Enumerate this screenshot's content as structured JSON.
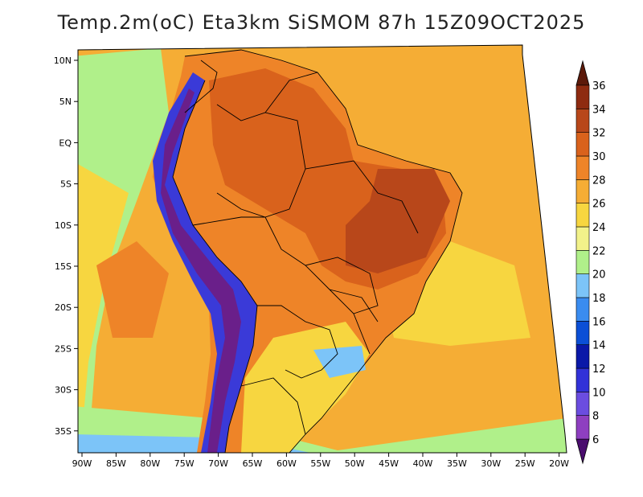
{
  "title": "Temp.2m(oC) Eta3km SiSMOM 87h 15Z09OCT2025",
  "lat_labels": [
    "10N",
    "5N",
    "EQ",
    "5S",
    "10S",
    "15S",
    "20S",
    "25S",
    "30S",
    "35S"
  ],
  "lon_labels": [
    "90W",
    "85W",
    "80W",
    "75W",
    "70W",
    "65W",
    "60W",
    "55W",
    "50W",
    "45W",
    "40W",
    "35W",
    "30W",
    "25W",
    "20W"
  ],
  "colorbar": {
    "unit": "oC",
    "levels": [
      "6",
      "8",
      "10",
      "12",
      "14",
      "16",
      "18",
      "20",
      "22",
      "24",
      "26",
      "28",
      "30",
      "32",
      "34",
      "36"
    ],
    "colors": [
      "#6a1f8a",
      "#8e3fc0",
      "#6b4de0",
      "#3232d8",
      "#0a18a8",
      "#0b4fd6",
      "#3a8cf0",
      "#7cc4f8",
      "#b0f08a",
      "#f2f28a",
      "#f7d640",
      "#f5ad35",
      "#ee8428",
      "#d9621c",
      "#b8471a",
      "#8e2b10",
      "#5c1a0a"
    ],
    "low_arrow": "#4a0d6e",
    "high_arrow": "#5c1a0a"
  },
  "palette": {
    "ocean_warm": "#f5ad35",
    "ocean_mild": "#f7d640",
    "ocean_cool": "#b0f08a",
    "ocean_cold": "#7cc4f8",
    "land_hot": "#d9621c",
    "land_hotter": "#b8471a",
    "land_warm": "#ee8428",
    "andes_cold": "#3a3ad8",
    "andes_colder": "#6a1f8a",
    "border": "#000000"
  }
}
